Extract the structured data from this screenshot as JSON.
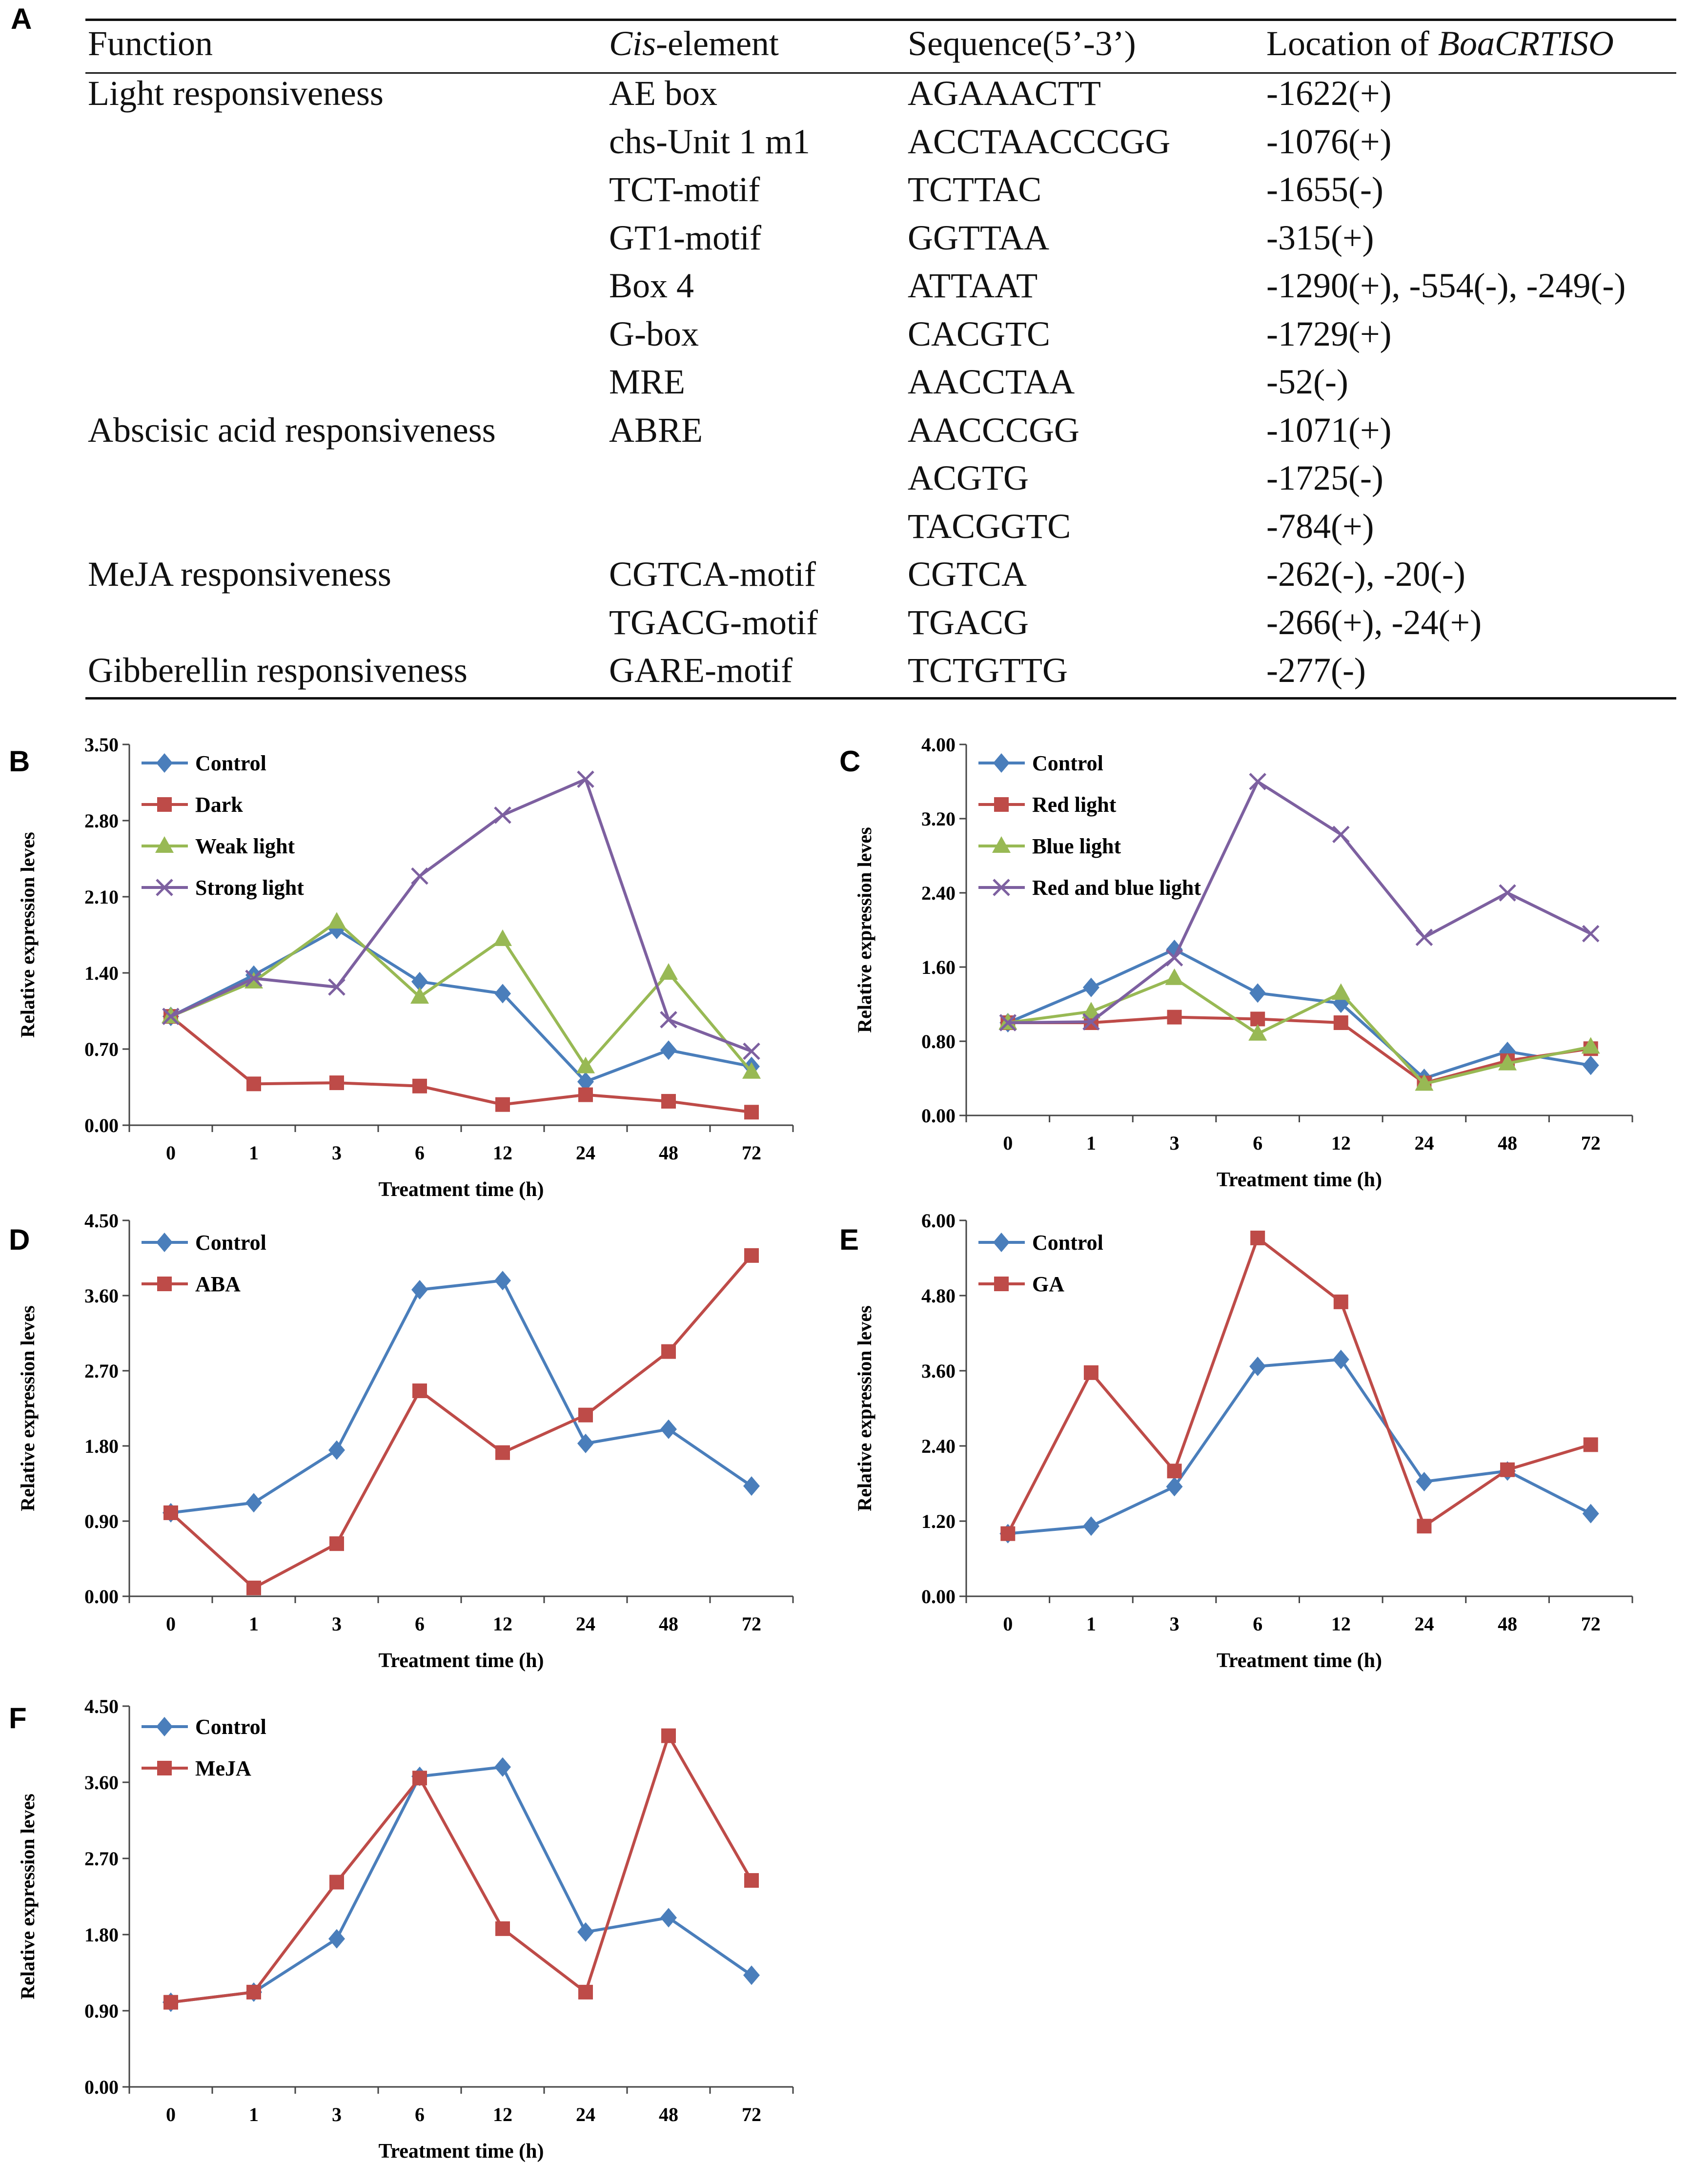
{
  "table": {
    "label": "A",
    "headers": {
      "function": "Function",
      "cis_prefix": "Cis",
      "cis_suffix": "-element",
      "sequence": "Sequence(5’-3’)",
      "location_prefix": "Location of ",
      "location_gene": "BoaCRTISO"
    },
    "rows": [
      {
        "function": "Light responsiveness",
        "element": "AE box",
        "sequence": "AGAAACTT",
        "location": "-1622(+)"
      },
      {
        "function": "",
        "element": "chs-Unit 1 m1",
        "sequence": "ACCTAACCCGG",
        "location": "-1076(+)"
      },
      {
        "function": "",
        "element": "TCT-motif",
        "sequence": "TCTTAC",
        "location": "-1655(-)"
      },
      {
        "function": "",
        "element": "GT1-motif",
        "sequence": "GGTTAA",
        "location": "-315(+)"
      },
      {
        "function": "",
        "element": "Box 4",
        "sequence": "ATTAAT",
        "location": "-1290(+), -554(-), -249(-)"
      },
      {
        "function": "",
        "element": "G-box",
        "sequence": "CACGTC",
        "location": "-1729(+)"
      },
      {
        "function": "",
        "element": "MRE",
        "sequence": "AACCTAA",
        "location": "-52(-)"
      },
      {
        "function": "Abscisic acid responsiveness",
        "element": "ABRE",
        "sequence": "AACCCGG",
        "location": "-1071(+)"
      },
      {
        "function": "",
        "element": "",
        "sequence": "ACGTG",
        "location": "-1725(-)"
      },
      {
        "function": "",
        "element": "",
        "sequence": "TACGGTC",
        "location": "-784(+)"
      },
      {
        "function": "MeJA responsiveness",
        "element": "CGTCA-motif",
        "sequence": "CGTCA",
        "location": "-262(-), -20(-)"
      },
      {
        "function": "",
        "element": "TGACG-motif",
        "sequence": "TGACG",
        "location": "-266(+), -24(+)"
      },
      {
        "function": "Gibberellin responsiveness",
        "element": "GARE-motif",
        "sequence": "TCTGTTG",
        "location": "-277(-)"
      }
    ]
  },
  "colors": {
    "Control": "#4a7ebb",
    "red": "#be4b48",
    "green": "#98b954",
    "purple": "#7d60a0"
  },
  "chart_data": [
    {
      "label": "B",
      "type": "line",
      "categories": [
        "0",
        "1",
        "3",
        "6",
        "12",
        "24",
        "48",
        "72"
      ],
      "xlabel": "Treatment time (h)",
      "ylabel": "Relative expression leves",
      "ylim": [
        0,
        3.5
      ],
      "yticks": [
        "0.00",
        "0.70",
        "1.40",
        "2.10",
        "2.80",
        "3.50"
      ],
      "series": [
        {
          "name": "Control",
          "color": "#4a7ebb",
          "marker": "diamond",
          "values": [
            1.0,
            1.38,
            1.8,
            1.32,
            1.21,
            0.4,
            0.69,
            0.54
          ]
        },
        {
          "name": "Dark",
          "color": "#be4b48",
          "marker": "square",
          "values": [
            1.0,
            0.38,
            0.39,
            0.36,
            0.19,
            0.28,
            0.22,
            0.12
          ]
        },
        {
          "name": "Weak light",
          "color": "#98b954",
          "marker": "triangle",
          "values": [
            1.0,
            1.32,
            1.87,
            1.18,
            1.71,
            0.54,
            1.4,
            0.49
          ]
        },
        {
          "name": "Strong light",
          "color": "#7d60a0",
          "marker": "x",
          "values": [
            1.0,
            1.35,
            1.27,
            2.29,
            2.85,
            3.18,
            0.97,
            0.68
          ]
        }
      ]
    },
    {
      "label": "C",
      "type": "line",
      "categories": [
        "0",
        "1",
        "3",
        "6",
        "12",
        "24",
        "48",
        "72"
      ],
      "xlabel": "Treatment time (h)",
      "ylabel": "Relative expression leves",
      "ylim": [
        0,
        4.0
      ],
      "yticks": [
        "0.00",
        "0.80",
        "1.60",
        "2.40",
        "3.20",
        "4.00"
      ],
      "series": [
        {
          "name": "Control",
          "color": "#4a7ebb",
          "marker": "diamond",
          "values": [
            1.0,
            1.38,
            1.79,
            1.32,
            1.21,
            0.4,
            0.69,
            0.54
          ]
        },
        {
          "name": "Red light",
          "color": "#be4b48",
          "marker": "square",
          "values": [
            1.0,
            1.0,
            1.06,
            1.04,
            1.0,
            0.35,
            0.59,
            0.72
          ]
        },
        {
          "name": "Blue light",
          "color": "#98b954",
          "marker": "triangle",
          "values": [
            1.0,
            1.12,
            1.48,
            0.88,
            1.32,
            0.34,
            0.56,
            0.74
          ]
        },
        {
          "name": "Red and blue light",
          "color": "#7d60a0",
          "marker": "x",
          "values": [
            1.0,
            1.01,
            1.7,
            3.6,
            3.03,
            1.92,
            2.4,
            1.96
          ]
        }
      ]
    },
    {
      "label": "D",
      "type": "line",
      "categories": [
        "0",
        "1",
        "3",
        "6",
        "12",
        "24",
        "48",
        "72"
      ],
      "xlabel": "Treatment time (h)",
      "ylabel": "Relative expression leves",
      "ylim": [
        0,
        4.5
      ],
      "yticks": [
        "0.00",
        "0.90",
        "1.80",
        "2.70",
        "3.60",
        "4.50"
      ],
      "series": [
        {
          "name": "Control",
          "color": "#4a7ebb",
          "marker": "diamond",
          "values": [
            1.0,
            1.12,
            1.75,
            3.67,
            3.78,
            1.83,
            2.0,
            1.32
          ]
        },
        {
          "name": "ABA",
          "color": "#be4b48",
          "marker": "square",
          "values": [
            1.0,
            0.1,
            0.63,
            2.46,
            1.72,
            2.17,
            2.93,
            4.08
          ]
        }
      ]
    },
    {
      "label": "E",
      "type": "line",
      "categories": [
        "0",
        "1",
        "3",
        "6",
        "12",
        "24",
        "48",
        "72"
      ],
      "xlabel": "Treatment time (h)",
      "ylabel": "Relative expression leves",
      "ylim": [
        0,
        6.0
      ],
      "yticks": [
        "0.00",
        "1.20",
        "2.40",
        "3.60",
        "4.80",
        "6.00"
      ],
      "series": [
        {
          "name": "Control",
          "color": "#4a7ebb",
          "marker": "diamond",
          "values": [
            1.0,
            1.12,
            1.75,
            3.67,
            3.78,
            1.83,
            2.0,
            1.32
          ]
        },
        {
          "name": "GA",
          "color": "#be4b48",
          "marker": "square",
          "values": [
            1.0,
            3.57,
            2.0,
            5.72,
            4.7,
            1.12,
            2.02,
            2.42
          ]
        }
      ]
    },
    {
      "label": "F",
      "type": "line",
      "categories": [
        "0",
        "1",
        "3",
        "6",
        "12",
        "24",
        "48",
        "72"
      ],
      "xlabel": "Treatment time (h)",
      "ylabel": "Relative expression leves",
      "ylim": [
        0,
        4.5
      ],
      "yticks": [
        "0.00",
        "0.90",
        "1.80",
        "2.70",
        "3.60",
        "4.50"
      ],
      "series": [
        {
          "name": "Control",
          "color": "#4a7ebb",
          "marker": "diamond",
          "values": [
            1.0,
            1.12,
            1.75,
            3.67,
            3.78,
            1.83,
            2.0,
            1.32
          ]
        },
        {
          "name": "MeJA",
          "color": "#be4b48",
          "marker": "square",
          "values": [
            1.0,
            1.12,
            2.42,
            3.65,
            1.87,
            1.12,
            4.15,
            2.44
          ]
        }
      ]
    }
  ]
}
